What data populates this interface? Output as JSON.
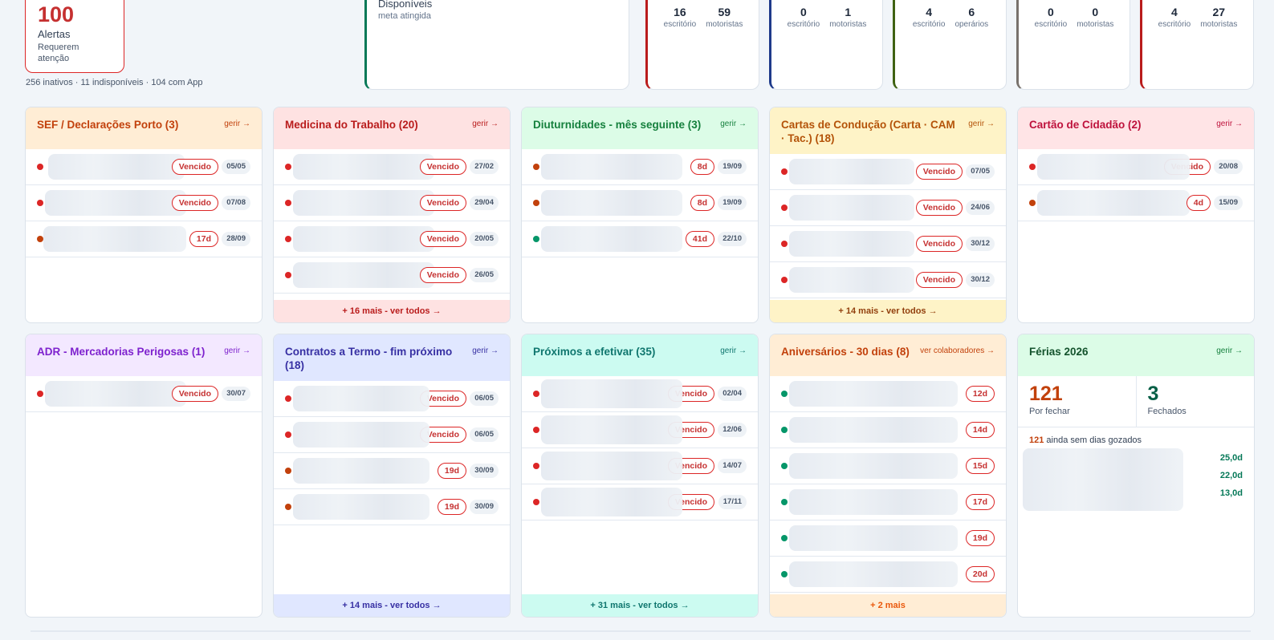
{
  "top": {
    "alerts": {
      "value": "100",
      "label": "Alertas",
      "sub": "Requerem atenção"
    },
    "summary": "256 inativos · 11 indisponíveis · 104 com App",
    "disponiveis": {
      "title": "Disponíveis",
      "sub": "meta atingida"
    },
    "departments": [
      {
        "color": "#b91c1c",
        "a_val": "16",
        "a_lbl": "escritório",
        "b_val": "59",
        "b_lbl": "motoristas"
      },
      {
        "color": "#1e3a8a",
        "a_val": "0",
        "a_lbl": "escritório",
        "b_val": "1",
        "b_lbl": "motoristas"
      },
      {
        "color": "#3f6212",
        "a_val": "4",
        "a_lbl": "escritório",
        "b_val": "6",
        "b_lbl": "operários"
      },
      {
        "color": "#78716c",
        "a_val": "0",
        "a_lbl": "escritório",
        "b_val": "0",
        "b_lbl": "motoristas"
      },
      {
        "color": "#b91c1c",
        "a_val": "4",
        "a_lbl": "escritório",
        "b_val": "27",
        "b_lbl": "motoristas"
      }
    ]
  },
  "panels": {
    "sef": {
      "title": "SEF / Declarações Porto (3)",
      "link": "gerir →",
      "rows": [
        {
          "badge": "Vencido",
          "date": "05/05"
        },
        {
          "badge": "Vencido",
          "date": "07/08"
        },
        {
          "badge": "17d",
          "date": "28/09"
        }
      ]
    },
    "medicina": {
      "title": "Medicina do Trabalho (20)",
      "link": "gerir →",
      "rows": [
        {
          "badge": "Vencido",
          "date": "27/02"
        },
        {
          "badge": "Vencido",
          "date": "29/04"
        },
        {
          "badge": "Vencido",
          "date": "20/05"
        },
        {
          "badge": "Vencido",
          "date": "26/05"
        }
      ],
      "footer": "+ 16 mais - ver todos →"
    },
    "diuturnidades": {
      "title": "Diuturnidades - mês seguinte (3)",
      "link": "gerir →",
      "rows": [
        {
          "badge": "8d",
          "date": "19/09"
        },
        {
          "badge": "8d",
          "date": "19/09"
        },
        {
          "badge": "41d",
          "date": "22/10"
        }
      ]
    },
    "cartas": {
      "title": "Cartas de Condução (Carta · CAM · Tac.) (18)",
      "link": "gerir →",
      "rows": [
        {
          "badge": "Vencido",
          "date": "07/05"
        },
        {
          "badge": "Vencido",
          "date": "24/06"
        },
        {
          "badge": "Vencido",
          "date": "30/12"
        },
        {
          "badge": "Vencido",
          "date": "30/12"
        }
      ],
      "footer": "+ 14 mais - ver todos →"
    },
    "cartao": {
      "title": "Cartão de Cidadão (2)",
      "link": "gerir →",
      "rows": [
        {
          "badge": "Vencido",
          "date": "20/08"
        },
        {
          "badge": "4d",
          "date": "15/09"
        }
      ]
    },
    "adr": {
      "title": "ADR - Mercadorias Perigosas (1)",
      "link": "gerir →",
      "rows": [
        {
          "badge": "Vencido",
          "date": "30/07"
        }
      ]
    },
    "contratos": {
      "title": "Contratos a Termo - fim próximo (18)",
      "link": "gerir →",
      "rows": [
        {
          "badge": "Vencido",
          "date": "06/05"
        },
        {
          "badge": "Vencido",
          "date": "06/05"
        },
        {
          "badge": "19d",
          "date": "30/09"
        },
        {
          "badge": "19d",
          "date": "30/09"
        }
      ],
      "footer": "+ 14 mais - ver todos →"
    },
    "efetivar": {
      "title": "Próximos a efetivar (35)",
      "link": "gerir →",
      "rows": [
        {
          "badge": "Vencido",
          "date": "02/04"
        },
        {
          "badge": "Vencido",
          "date": "12/06"
        },
        {
          "badge": "Vencido",
          "date": "14/07"
        },
        {
          "badge": "Vencido",
          "date": "17/11"
        }
      ],
      "footer": "+ 31 mais - ver todos →"
    },
    "aniversarios": {
      "title": "Aniversários - 30 dias (8)",
      "link": "ver colaboradores →",
      "rows": [
        {
          "badge": "12d"
        },
        {
          "badge": "14d"
        },
        {
          "badge": "15d"
        },
        {
          "badge": "17d"
        },
        {
          "badge": "19d"
        },
        {
          "badge": "20d"
        }
      ],
      "footer": "+ 2 mais"
    },
    "ferias": {
      "title": "Férias 2026",
      "link": "gerir →",
      "por_fechar": "121",
      "por_fechar_lbl": "Por fechar",
      "fechados": "3",
      "fechados_lbl": "Fechados",
      "note_num": "121",
      "note_text": "ainda sem dias gozados",
      "values": [
        "25,0d",
        "22,0d",
        "13,0d"
      ]
    }
  },
  "colors": {
    "danger": "#dc2626",
    "warning": "#c2410c",
    "ok": "#059669"
  }
}
